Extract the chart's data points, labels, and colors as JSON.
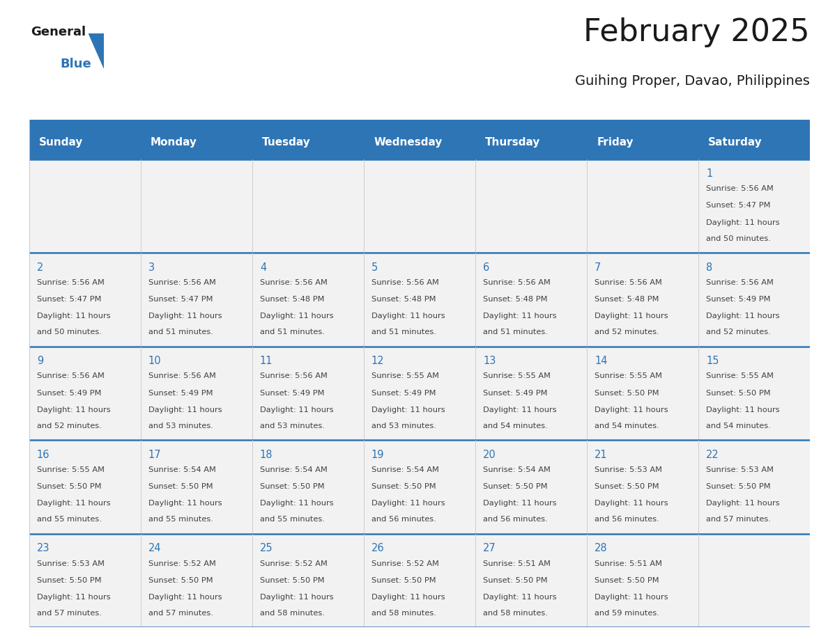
{
  "title": "February 2025",
  "subtitle": "Guihing Proper, Davao, Philippines",
  "header_bg": "#2E75B6",
  "header_text": "#FFFFFF",
  "cell_bg_light": "#F2F2F2",
  "cell_bg_white": "#FFFFFF",
  "border_color": "#2E75B6",
  "row_border_color": "#2E75B6",
  "days_of_week": [
    "Sunday",
    "Monday",
    "Tuesday",
    "Wednesday",
    "Thursday",
    "Friday",
    "Saturday"
  ],
  "title_color": "#1a1a1a",
  "subtitle_color": "#1a1a1a",
  "day_number_color": "#2E75B6",
  "cell_text_color": "#404040",
  "logo_general_color": "#1a1a1a",
  "logo_blue_color": "#2E75B6",
  "logo_triangle_color": "#2E75B6",
  "calendar_data": [
    [
      null,
      null,
      null,
      null,
      null,
      null,
      {
        "day": 1,
        "sunrise": "5:56 AM",
        "sunset": "5:47 PM",
        "daylight_hours": 11,
        "daylight_minutes": 50
      }
    ],
    [
      {
        "day": 2,
        "sunrise": "5:56 AM",
        "sunset": "5:47 PM",
        "daylight_hours": 11,
        "daylight_minutes": 50
      },
      {
        "day": 3,
        "sunrise": "5:56 AM",
        "sunset": "5:47 PM",
        "daylight_hours": 11,
        "daylight_minutes": 51
      },
      {
        "day": 4,
        "sunrise": "5:56 AM",
        "sunset": "5:48 PM",
        "daylight_hours": 11,
        "daylight_minutes": 51
      },
      {
        "day": 5,
        "sunrise": "5:56 AM",
        "sunset": "5:48 PM",
        "daylight_hours": 11,
        "daylight_minutes": 51
      },
      {
        "day": 6,
        "sunrise": "5:56 AM",
        "sunset": "5:48 PM",
        "daylight_hours": 11,
        "daylight_minutes": 51
      },
      {
        "day": 7,
        "sunrise": "5:56 AM",
        "sunset": "5:48 PM",
        "daylight_hours": 11,
        "daylight_minutes": 52
      },
      {
        "day": 8,
        "sunrise": "5:56 AM",
        "sunset": "5:49 PM",
        "daylight_hours": 11,
        "daylight_minutes": 52
      }
    ],
    [
      {
        "day": 9,
        "sunrise": "5:56 AM",
        "sunset": "5:49 PM",
        "daylight_hours": 11,
        "daylight_minutes": 52
      },
      {
        "day": 10,
        "sunrise": "5:56 AM",
        "sunset": "5:49 PM",
        "daylight_hours": 11,
        "daylight_minutes": 53
      },
      {
        "day": 11,
        "sunrise": "5:56 AM",
        "sunset": "5:49 PM",
        "daylight_hours": 11,
        "daylight_minutes": 53
      },
      {
        "day": 12,
        "sunrise": "5:55 AM",
        "sunset": "5:49 PM",
        "daylight_hours": 11,
        "daylight_minutes": 53
      },
      {
        "day": 13,
        "sunrise": "5:55 AM",
        "sunset": "5:49 PM",
        "daylight_hours": 11,
        "daylight_minutes": 54
      },
      {
        "day": 14,
        "sunrise": "5:55 AM",
        "sunset": "5:50 PM",
        "daylight_hours": 11,
        "daylight_minutes": 54
      },
      {
        "day": 15,
        "sunrise": "5:55 AM",
        "sunset": "5:50 PM",
        "daylight_hours": 11,
        "daylight_minutes": 54
      }
    ],
    [
      {
        "day": 16,
        "sunrise": "5:55 AM",
        "sunset": "5:50 PM",
        "daylight_hours": 11,
        "daylight_minutes": 55
      },
      {
        "day": 17,
        "sunrise": "5:54 AM",
        "sunset": "5:50 PM",
        "daylight_hours": 11,
        "daylight_minutes": 55
      },
      {
        "day": 18,
        "sunrise": "5:54 AM",
        "sunset": "5:50 PM",
        "daylight_hours": 11,
        "daylight_minutes": 55
      },
      {
        "day": 19,
        "sunrise": "5:54 AM",
        "sunset": "5:50 PM",
        "daylight_hours": 11,
        "daylight_minutes": 56
      },
      {
        "day": 20,
        "sunrise": "5:54 AM",
        "sunset": "5:50 PM",
        "daylight_hours": 11,
        "daylight_minutes": 56
      },
      {
        "day": 21,
        "sunrise": "5:53 AM",
        "sunset": "5:50 PM",
        "daylight_hours": 11,
        "daylight_minutes": 56
      },
      {
        "day": 22,
        "sunrise": "5:53 AM",
        "sunset": "5:50 PM",
        "daylight_hours": 11,
        "daylight_minutes": 57
      }
    ],
    [
      {
        "day": 23,
        "sunrise": "5:53 AM",
        "sunset": "5:50 PM",
        "daylight_hours": 11,
        "daylight_minutes": 57
      },
      {
        "day": 24,
        "sunrise": "5:52 AM",
        "sunset": "5:50 PM",
        "daylight_hours": 11,
        "daylight_minutes": 57
      },
      {
        "day": 25,
        "sunrise": "5:52 AM",
        "sunset": "5:50 PM",
        "daylight_hours": 11,
        "daylight_minutes": 58
      },
      {
        "day": 26,
        "sunrise": "5:52 AM",
        "sunset": "5:50 PM",
        "daylight_hours": 11,
        "daylight_minutes": 58
      },
      {
        "day": 27,
        "sunrise": "5:51 AM",
        "sunset": "5:50 PM",
        "daylight_hours": 11,
        "daylight_minutes": 58
      },
      {
        "day": 28,
        "sunrise": "5:51 AM",
        "sunset": "5:50 PM",
        "daylight_hours": 11,
        "daylight_minutes": 59
      },
      null
    ]
  ]
}
